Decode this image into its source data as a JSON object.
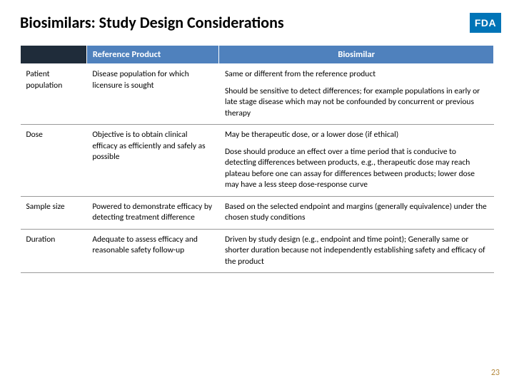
{
  "title": "Biosimilars: Study Design Considerations",
  "logo_text": "FDA",
  "logo_bg": "#0074b7",
  "header_bg": "#4f81bd",
  "header_dark_bg": "#1f2c3a",
  "border_color": "#9a9a9a",
  "page_number": "23",
  "page_number_color": "#b58a3f",
  "table": {
    "columns": [
      "",
      "Reference Product",
      "Biosimilar"
    ],
    "col_widths_pct": [
      14,
      28,
      58
    ],
    "rows": [
      {
        "label": "Patient population",
        "ref": "Disease population for which licensure is sought",
        "bio_p1": "Same or different from the reference product",
        "bio_p2": "Should be sensitive to detect differences; for example populations in early or late stage disease which may not be confounded by concurrent or previous therapy"
      },
      {
        "label": "Dose",
        "ref": "Objective is to obtain clinical efficacy as efficiently and safely as possible",
        "bio_p1": "May be therapeutic dose, or a lower dose (if ethical)",
        "bio_p2": "Dose should produce an effect over a time period that is conducive to detecting differences between products, e.g., therapeutic dose may reach plateau before one can assay for differences between products; lower dose may have a less steep dose-response curve"
      },
      {
        "label": "Sample size",
        "ref": "Powered to demonstrate efficacy by detecting treatment difference",
        "bio_p1": "Based on the selected endpoint and margins (generally equivalence) under the chosen study conditions",
        "bio_p2": ""
      },
      {
        "label": "Duration",
        "ref": "Adequate to assess efficacy and reasonable safety follow-up",
        "bio_p1": "Driven by study design (e.g., endpoint and time point); Generally same or shorter duration because not independently establishing safety and efficacy of the product",
        "bio_p2": ""
      }
    ]
  }
}
